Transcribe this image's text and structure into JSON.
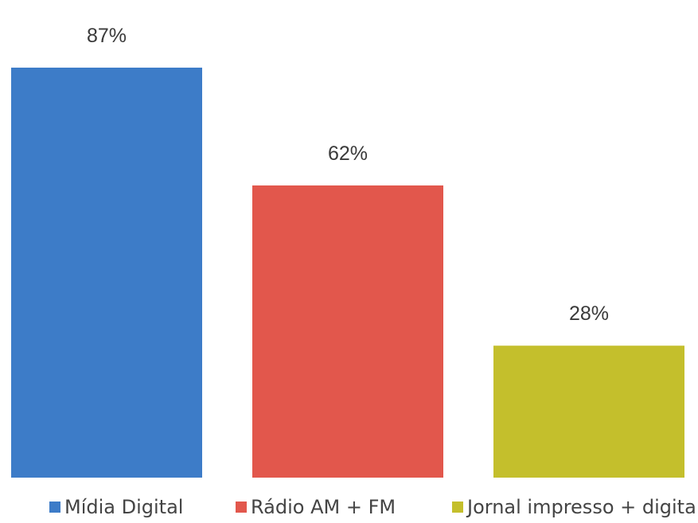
{
  "chart_data": {
    "type": "bar",
    "title": "",
    "xlabel": "",
    "ylabel": "",
    "ylim": [
      0,
      100
    ],
    "grid": false,
    "legend_position": "bottom",
    "categories": [
      "Mídia Digital",
      "Rádio AM + FM",
      "Jornal impresso + digital"
    ],
    "values": [
      87,
      62,
      28
    ],
    "value_labels": [
      "87%",
      "62%",
      "28%"
    ],
    "colors": [
      "#3d7cc8",
      "#e2574c",
      "#c4bf2c"
    ],
    "series": [
      {
        "name": "Mídia Digital",
        "values": [
          87,
          null,
          null
        ]
      },
      {
        "name": "Rádio AM + FM",
        "values": [
          null,
          62,
          null
        ]
      },
      {
        "name": "Jornal impresso + digital",
        "values": [
          null,
          null,
          28
        ]
      }
    ]
  }
}
